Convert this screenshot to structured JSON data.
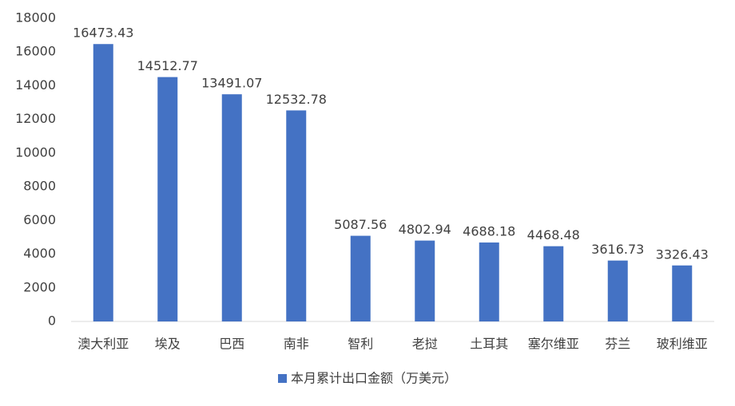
{
  "chart_data": {
    "type": "bar",
    "categories": [
      "澳大利亚",
      "埃及",
      "巴西",
      "南非",
      "智利",
      "老挝",
      "土耳其",
      "塞尔维亚",
      "芬兰",
      "玻利维亚"
    ],
    "series": [
      {
        "name": "本月累计出口金额（万美元）",
        "color": "#4472c4",
        "values": [
          16473.43,
          14512.77,
          13491.07,
          12532.78,
          5087.56,
          4802.94,
          4688.18,
          4468.48,
          3616.73,
          3326.43
        ]
      }
    ],
    "ylim": [
      0,
      18000
    ],
    "yticks": [
      0,
      2000,
      4000,
      6000,
      8000,
      10000,
      12000,
      14000,
      16000,
      18000
    ],
    "grid": false,
    "legend": "bottom"
  }
}
